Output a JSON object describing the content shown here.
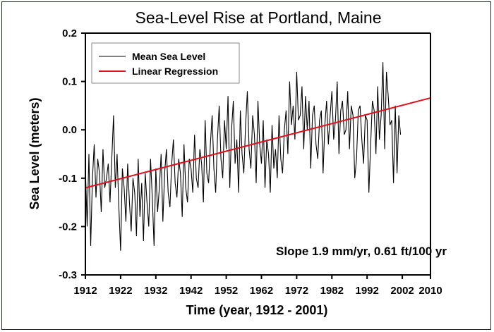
{
  "chart_data": {
    "type": "line",
    "title": "Sea-Level Rise at Portland, Maine",
    "xlabel": "Time (year, 1912 - 2001)",
    "ylabel": "Sea Level (meters)",
    "xlim": [
      1912,
      2010
    ],
    "ylim": [
      -0.3,
      0.2
    ],
    "xticks": [
      "1912",
      "1922",
      "1932",
      "1942",
      "1952",
      "1962",
      "1972",
      "1982",
      "1992",
      "2002",
      "2010"
    ],
    "yticks": [
      "0.2",
      "0.1",
      "0.0",
      "-0.1",
      "-0.2",
      "-0.3"
    ],
    "grid": false,
    "legend_placement": "top-left",
    "annotation": "Slope 1.9 mm/yr, 0.61 ft/100 yr",
    "colors": {
      "mean_sea_level": "#000000",
      "linear_regression": "#e0101c"
    },
    "series": [
      {
        "name": "Mean Sea Level",
        "values_by_year_semiannual": {
          "1912": [
            -0.08,
            -0.2
          ],
          "1913": [
            -0.05,
            -0.24
          ],
          "1914": [
            -0.1,
            -0.03
          ],
          "1915": [
            -0.14,
            -0.06
          ],
          "1916": [
            -0.09,
            -0.17
          ],
          "1917": [
            -0.04,
            -0.12
          ],
          "1918": [
            -0.1,
            -0.07
          ],
          "1919": [
            -0.15,
            -0.06
          ],
          "1920": [
            0.03,
            -0.12
          ],
          "1921": [
            -0.05,
            -0.16
          ],
          "1922": [
            -0.25,
            -0.08
          ],
          "1923": [
            -0.12,
            -0.19
          ],
          "1924": [
            -0.07,
            -0.15
          ],
          "1925": [
            -0.21,
            -0.1
          ],
          "1926": [
            -0.13,
            -0.22
          ],
          "1927": [
            -0.06,
            -0.18
          ],
          "1928": [
            -0.11,
            -0.23
          ],
          "1929": [
            -0.09,
            -0.15
          ],
          "1930": [
            -0.2,
            -0.06
          ],
          "1931": [
            -0.14,
            -0.24
          ],
          "1932": [
            -0.08,
            -0.17
          ],
          "1933": [
            -0.12,
            -0.05
          ],
          "1934": [
            -0.19,
            -0.09
          ],
          "1935": [
            -0.04,
            -0.13
          ],
          "1936": [
            -0.16,
            -0.07
          ],
          "1937": [
            -0.02,
            -0.11
          ],
          "1938": [
            -0.14,
            -0.06
          ],
          "1939": [
            -0.09,
            -0.18
          ],
          "1940": [
            -0.03,
            -0.12
          ],
          "1941": [
            -0.15,
            -0.06
          ],
          "1942": [
            -0.08,
            -0.13
          ],
          "1943": [
            -0.01,
            -0.1
          ],
          "1944": [
            -0.12,
            -0.04
          ],
          "1945": [
            -0.07,
            -0.15
          ],
          "1946": [
            0.02,
            -0.09
          ],
          "1947": [
            -0.11,
            -0.03
          ],
          "1948": [
            0.03,
            -0.08
          ],
          "1949": [
            -0.13,
            -0.02
          ],
          "1950": [
            0.05,
            -0.06
          ],
          "1951": [
            -0.1,
            0.02
          ],
          "1952": [
            -0.04,
            0.07
          ],
          "1953": [
            -0.12,
            0.0
          ],
          "1954": [
            0.06,
            -0.07
          ],
          "1955": [
            -0.02,
            -0.13
          ],
          "1956": [
            0.04,
            -0.05
          ],
          "1957": [
            -0.09,
            0.01
          ],
          "1958": [
            0.08,
            -0.04
          ],
          "1959": [
            -0.08,
            0.03
          ],
          "1960": [
            -0.01,
            -0.11
          ],
          "1961": [
            0.06,
            -0.03
          ],
          "1962": [
            -0.07,
            0.02
          ],
          "1963": [
            -0.12,
            -0.02
          ],
          "1964": [
            -0.05,
            -0.13
          ],
          "1965": [
            0.01,
            -0.08
          ],
          "1966": [
            -0.04,
            -0.1
          ],
          "1967": [
            0.03,
            -0.06
          ],
          "1968": [
            -0.09,
            0.0
          ],
          "1969": [
            0.04,
            -0.05
          ],
          "1970": [
            0.1,
            0.01
          ],
          "1971": [
            0.05,
            -0.02
          ],
          "1972": [
            0.12,
            0.02
          ],
          "1973": [
            0.03,
            0.09
          ],
          "1974": [
            -0.04,
            0.07
          ],
          "1975": [
            0.0,
            0.06
          ],
          "1976": [
            -0.08,
            0.03
          ],
          "1977": [
            0.05,
            -0.03
          ],
          "1978": [
            -0.06,
            0.02
          ],
          "1979": [
            0.04,
            -0.09
          ],
          "1980": [
            0.01,
            0.06
          ],
          "1981": [
            -0.03,
            0.03
          ],
          "1982": [
            0.08,
            -0.02
          ],
          "1983": [
            0.02,
            0.1
          ],
          "1984": [
            -0.05,
            0.04
          ],
          "1985": [
            0.06,
            -0.01
          ],
          "1986": [
            0.0,
            0.08
          ],
          "1987": [
            -0.04,
            0.05
          ],
          "1988": [
            0.03,
            -0.1
          ],
          "1989": [
            -0.06,
            0.04
          ],
          "1990": [
            0.05,
            -0.02
          ],
          "1991": [
            -0.07,
            0.03
          ],
          "1992": [
            0.02,
            -0.13
          ],
          "1993": [
            -0.03,
            0.06
          ],
          "1994": [
            0.04,
            -0.05
          ],
          "1995": [
            0.09,
            -0.02
          ],
          "1996": [
            0.03,
            0.14
          ],
          "1997": [
            -0.04,
            0.12
          ],
          "1998": [
            0.07,
            0.01
          ],
          "1999": [
            0.02,
            -0.11
          ],
          "2000": [
            0.05,
            -0.09
          ],
          "2001": [
            0.03,
            -0.01
          ]
        }
      },
      {
        "name": "Linear Regression",
        "x": [
          1912,
          2010
        ],
        "y": [
          -0.12,
          0.066
        ]
      }
    ]
  }
}
